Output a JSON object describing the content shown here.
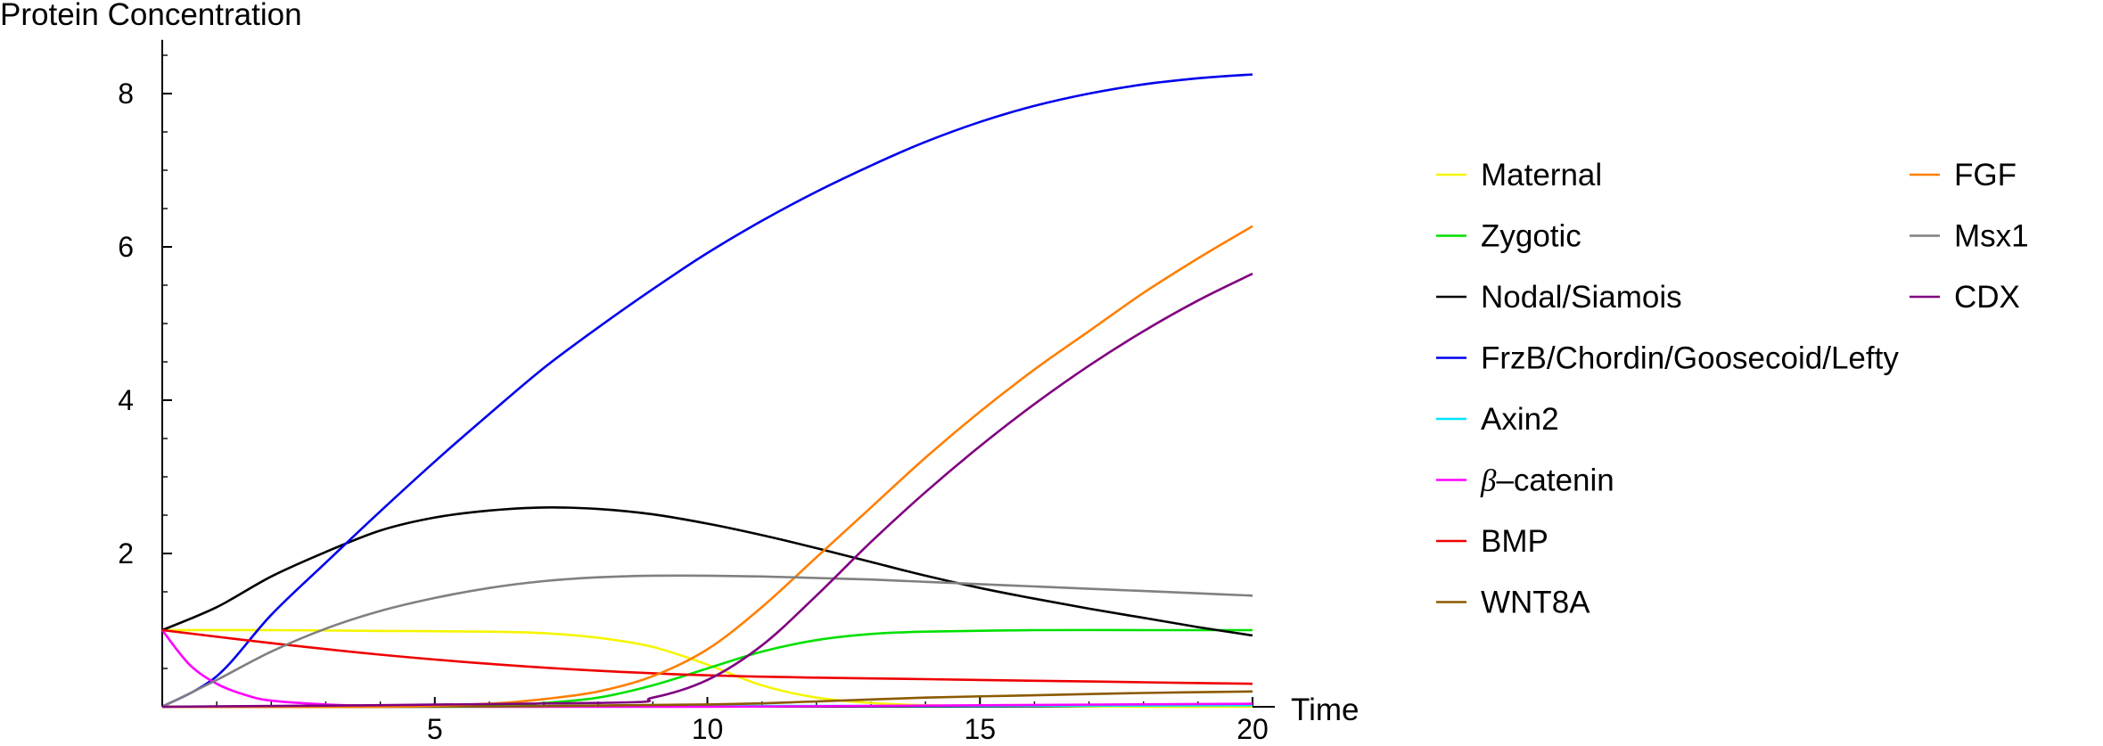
{
  "chart_data": {
    "type": "line",
    "xlabel": "Time",
    "ylabel": "Protein Concentration",
    "xlim": [
      0,
      20
    ],
    "ylim": [
      0,
      8.7
    ],
    "xticks": [
      5,
      10,
      15,
      20
    ],
    "yticks": [
      2,
      4,
      6,
      8
    ],
    "x_tick_labels": [
      "5",
      "10",
      "15",
      "20"
    ],
    "y_tick_labels": [
      "2",
      "4",
      "6",
      "8"
    ],
    "legend_position": "right",
    "series": [
      {
        "name": "Maternal",
        "color": "#f5f500",
        "x": [
          0,
          2,
          4,
          6,
          7,
          8,
          9,
          10,
          11,
          12,
          13,
          14,
          16,
          18,
          20
        ],
        "y": [
          1.0,
          1.0,
          0.99,
          0.98,
          0.96,
          0.9,
          0.78,
          0.55,
          0.28,
          0.12,
          0.05,
          0.02,
          0.01,
          0.0,
          0.0
        ]
      },
      {
        "name": "Zygotic",
        "color": "#00e000",
        "x": [
          0,
          6,
          7,
          8,
          9,
          10,
          11,
          12,
          13,
          14,
          16,
          18,
          20
        ],
        "y": [
          0.0,
          0.02,
          0.05,
          0.12,
          0.28,
          0.5,
          0.72,
          0.87,
          0.95,
          0.98,
          1.0,
          1.0,
          1.0
        ]
      },
      {
        "name": "Nodal/Siamois",
        "color": "#000000",
        "x": [
          0,
          1,
          2,
          3,
          4,
          5,
          6,
          7,
          8,
          9,
          10,
          11,
          12,
          13,
          14,
          15,
          16,
          17,
          18,
          19,
          20
        ],
        "y": [
          1.0,
          1.3,
          1.7,
          2.02,
          2.3,
          2.47,
          2.56,
          2.6,
          2.58,
          2.51,
          2.39,
          2.24,
          2.07,
          1.89,
          1.71,
          1.55,
          1.41,
          1.28,
          1.16,
          1.04,
          0.93
        ]
      },
      {
        "name": "FrzB/Chordin/Goosecoid/Lefty",
        "color": "#0000ee",
        "x": [
          0,
          1,
          2,
          3,
          4,
          5,
          6,
          7,
          8,
          9,
          10,
          11,
          12,
          13,
          14,
          15,
          16,
          17,
          18,
          19,
          20
        ],
        "y": [
          0.0,
          0.4,
          1.2,
          1.88,
          2.55,
          3.2,
          3.82,
          4.42,
          4.95,
          5.45,
          5.92,
          6.34,
          6.72,
          7.06,
          7.37,
          7.63,
          7.84,
          8.0,
          8.12,
          8.2,
          8.25
        ]
      },
      {
        "name": "Axin2",
        "color": "#00e5ff",
        "x": [
          0,
          5,
          10,
          15,
          20
        ],
        "y": [
          0.0,
          0.0,
          0.01,
          0.01,
          0.02
        ]
      },
      {
        "name": "β–catenin",
        "color": "#ff00ff",
        "x": [
          0,
          0.5,
          1,
          1.5,
          2,
          3,
          4,
          6,
          10,
          15,
          20
        ],
        "y": [
          1.0,
          0.55,
          0.3,
          0.16,
          0.08,
          0.03,
          0.01,
          0.0,
          0.0,
          0.02,
          0.04
        ]
      },
      {
        "name": "BMP",
        "color": "#ee0000",
        "x": [
          0,
          2,
          4,
          6,
          8,
          10,
          12,
          14,
          16,
          18,
          20
        ],
        "y": [
          1.0,
          0.83,
          0.68,
          0.56,
          0.47,
          0.41,
          0.38,
          0.36,
          0.34,
          0.32,
          0.3
        ]
      },
      {
        "name": "WNT8A",
        "color": "#8b5a00",
        "x": [
          0,
          5,
          10,
          12,
          14,
          16,
          18,
          20
        ],
        "y": [
          0.0,
          0.0,
          0.03,
          0.07,
          0.12,
          0.15,
          0.18,
          0.2
        ]
      },
      {
        "name": "FGF",
        "color": "#ff7f00",
        "x": [
          0,
          4,
          6,
          7,
          8,
          9,
          10,
          11,
          12,
          13,
          14,
          15,
          16,
          17,
          18,
          19,
          20
        ],
        "y": [
          0.0,
          0.0,
          0.04,
          0.1,
          0.2,
          0.4,
          0.75,
          1.3,
          1.95,
          2.6,
          3.25,
          3.85,
          4.4,
          4.9,
          5.4,
          5.85,
          6.27
        ]
      },
      {
        "name": "Msx1",
        "color": "#808080",
        "x": [
          0,
          1,
          2,
          3,
          4,
          5,
          6,
          7,
          8,
          9,
          10,
          11,
          12,
          13,
          14,
          15,
          16,
          17,
          18,
          19,
          20
        ],
        "y": [
          0.0,
          0.35,
          0.72,
          1.02,
          1.25,
          1.42,
          1.55,
          1.64,
          1.69,
          1.71,
          1.71,
          1.7,
          1.68,
          1.66,
          1.63,
          1.6,
          1.57,
          1.54,
          1.51,
          1.48,
          1.45
        ]
      },
      {
        "name": "CDX",
        "color": "#800080",
        "x": [
          0,
          8,
          9,
          10,
          11,
          12,
          13,
          14,
          15,
          16,
          17,
          18,
          19,
          20
        ],
        "y": [
          0.0,
          0.05,
          0.12,
          0.35,
          0.8,
          1.45,
          2.15,
          2.8,
          3.4,
          3.95,
          4.45,
          4.9,
          5.3,
          5.65
        ]
      }
    ]
  }
}
